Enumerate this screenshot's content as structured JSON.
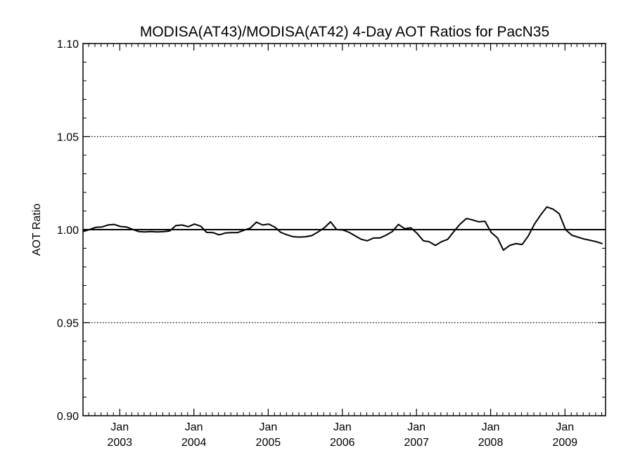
{
  "chart_data": {
    "type": "line",
    "title": "MODISA(AT43)/MODISA(AT42) 4-Day AOT Ratios for PacN35",
    "xlabel": "",
    "ylabel": "AOT Ratio",
    "xlim": [
      "2002-07-04",
      "2009-07-20"
    ],
    "ylim": [
      0.9,
      1.1
    ],
    "y_ticks": [
      "0.90",
      "0.95",
      "1.00",
      "1.05",
      "1.10"
    ],
    "y_gridlines": [
      0.95,
      1.05
    ],
    "reference_line": 1.0,
    "x_ticks": [
      {
        "date": "2003-01-01",
        "month": "Jan",
        "year": "2003"
      },
      {
        "date": "2004-01-01",
        "month": "Jan",
        "year": "2004"
      },
      {
        "date": "2005-01-01",
        "month": "Jan",
        "year": "2005"
      },
      {
        "date": "2006-01-01",
        "month": "Jan",
        "year": "2006"
      },
      {
        "date": "2007-01-01",
        "month": "Jan",
        "year": "2007"
      },
      {
        "date": "2008-01-01",
        "month": "Jan",
        "year": "2008"
      },
      {
        "date": "2009-01-01",
        "month": "Jan",
        "year": "2009"
      }
    ],
    "grid": "horizontal dotted at 0.95 and 1.05",
    "series": [
      {
        "x": [
          "2002-07-04",
          "2002-08-04",
          "2002-09-04",
          "2002-10-04",
          "2002-11-04",
          "2002-12-04",
          "2003-01-04",
          "2003-02-04",
          "2003-03-04",
          "2003-04-04",
          "2003-05-04",
          "2003-06-04",
          "2003-07-04",
          "2003-08-04",
          "2003-09-04",
          "2003-10-04",
          "2003-11-04",
          "2003-12-04",
          "2004-01-04",
          "2004-02-04",
          "2004-03-04",
          "2004-04-04",
          "2004-05-04",
          "2004-06-04",
          "2004-07-04",
          "2004-08-04",
          "2004-09-04",
          "2004-10-04",
          "2004-11-04",
          "2004-12-04",
          "2005-01-04",
          "2005-02-04",
          "2005-03-04",
          "2005-04-04",
          "2005-05-04",
          "2005-06-04",
          "2005-07-04",
          "2005-08-04",
          "2005-09-04",
          "2005-10-04",
          "2005-11-04",
          "2005-12-04",
          "2006-01-04",
          "2006-02-04",
          "2006-03-04",
          "2006-04-04",
          "2006-05-04",
          "2006-06-04",
          "2006-07-04",
          "2006-08-04",
          "2006-09-04",
          "2006-10-04",
          "2006-11-04",
          "2006-12-04",
          "2007-01-04",
          "2007-02-04",
          "2007-03-04",
          "2007-04-04",
          "2007-05-04",
          "2007-06-04",
          "2007-07-04",
          "2007-08-04",
          "2007-09-04",
          "2007-10-04",
          "2007-11-04",
          "2007-12-04",
          "2008-01-04",
          "2008-02-04",
          "2008-03-04",
          "2008-04-04",
          "2008-05-04",
          "2008-06-04",
          "2008-07-04",
          "2008-08-04",
          "2008-09-04",
          "2008-10-04",
          "2008-11-04",
          "2008-12-04",
          "2009-01-04",
          "2009-02-04",
          "2009-03-04",
          "2009-04-04",
          "2009-05-04",
          "2009-06-04",
          "2009-07-04"
        ],
        "values": [
          0.999,
          1.0,
          1.0012,
          1.0014,
          1.0025,
          1.0028,
          1.0017,
          1.0014,
          1.0002,
          0.999,
          0.9988,
          0.999,
          0.9988,
          0.9989,
          0.9993,
          1.0022,
          1.0025,
          1.0016,
          1.003,
          1.0018,
          0.9985,
          0.9984,
          0.9972,
          0.9982,
          0.9984,
          0.9984,
          0.9997,
          1.0008,
          1.004,
          1.0025,
          1.003,
          1.0012,
          0.9985,
          0.9972,
          0.9962,
          0.996,
          0.9962,
          0.9968,
          0.9988,
          1.001,
          1.0042,
          1.0,
          0.9998,
          0.9985,
          0.9967,
          0.9948,
          0.994,
          0.9955,
          0.9955,
          0.997,
          0.999,
          1.0028,
          1.0005,
          1.001,
          0.998,
          0.994,
          0.9935,
          0.9915,
          0.9935,
          0.9948,
          0.999,
          1.003,
          1.006,
          1.0052,
          1.0042,
          1.0045,
          0.9985,
          0.9955,
          0.989,
          0.9915,
          0.9925,
          0.992,
          0.9965,
          1.003,
          1.008,
          1.0122,
          1.011,
          1.0085,
          1.0,
          0.997,
          0.996,
          0.995,
          0.9943,
          0.9935,
          0.9925
        ]
      }
    ]
  }
}
